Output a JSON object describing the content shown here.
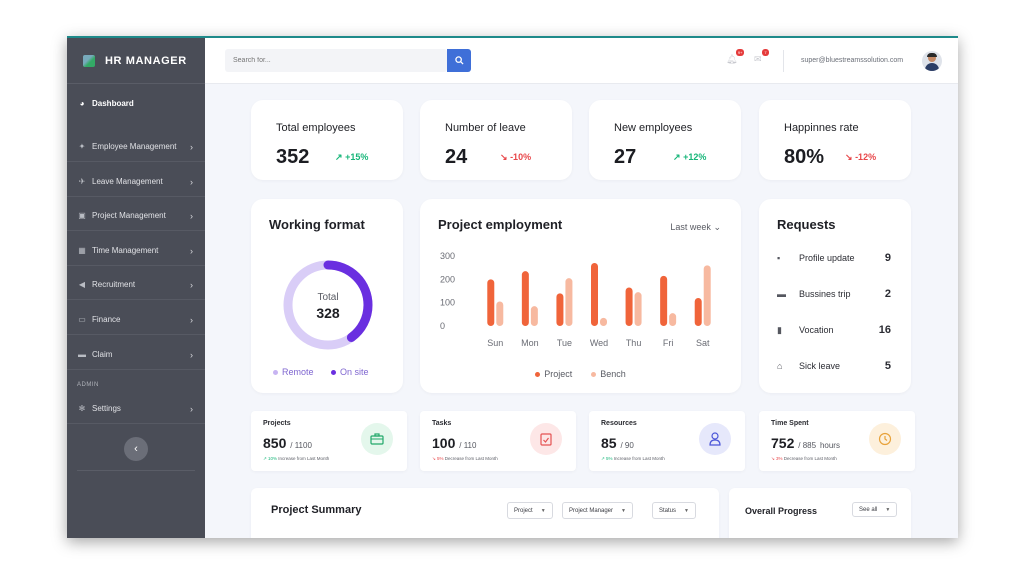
{
  "brand": {
    "title": "HR MANAGER"
  },
  "sidebar": {
    "items": [
      {
        "label": "Dashboard",
        "icon": "dashboard-icon"
      },
      {
        "label": "Employee Management",
        "icon": "users-icon"
      },
      {
        "label": "Leave Management",
        "icon": "plane-icon"
      },
      {
        "label": "Project Management",
        "icon": "briefcase-icon"
      },
      {
        "label": "Time Management",
        "icon": "calendar-icon"
      },
      {
        "label": "Recruitment",
        "icon": "megaphone-icon"
      },
      {
        "label": "Finance",
        "icon": "money-icon"
      },
      {
        "label": "Claim",
        "icon": "card-icon"
      }
    ],
    "admin_label": "ADMIN",
    "settings_label": "Settings"
  },
  "topbar": {
    "search_placeholder": "Search for...",
    "notif_count": "9+",
    "mail_count": "7",
    "email": "super@bluestreamssolution.com"
  },
  "stats": [
    {
      "label": "Total employees",
      "value": "352",
      "change": "+15%",
      "trend": "up"
    },
    {
      "label": "Number of leave",
      "value": "24",
      "change": "-10%",
      "trend": "down"
    },
    {
      "label": "New employees",
      "value": "27",
      "change": "+12%",
      "trend": "up"
    },
    {
      "label": "Happinnes rate",
      "value": "80%",
      "change": "-12%",
      "trend": "down"
    }
  ],
  "working_format": {
    "title": "Working format",
    "center_label": "Total",
    "center_value": "328",
    "legend": [
      "Remote",
      "On site"
    ],
    "onsite_fraction": 0.4,
    "colors": {
      "remote": "#d9cdf7",
      "onsite": "#6a2fe0"
    }
  },
  "project_employment": {
    "title": "Project employment",
    "period": "Last week"
  },
  "chart_data": {
    "type": "bar",
    "categories": [
      "Sun",
      "Mon",
      "Tue",
      "Wed",
      "Thu",
      "Fri",
      "Sat"
    ],
    "series": [
      {
        "name": "Project",
        "values": [
          200,
          235,
          140,
          270,
          165,
          215,
          120
        ],
        "color": "#f0643a"
      },
      {
        "name": "Bench",
        "values": [
          105,
          85,
          205,
          35,
          145,
          55,
          260
        ],
        "color": "#f7b9a0"
      }
    ],
    "yticks": [
      "300",
      "200",
      "100",
      "0"
    ],
    "ylim": [
      0,
      300
    ]
  },
  "requests": {
    "title": "Requests",
    "items": [
      {
        "label": "Profile update",
        "value": "9",
        "icon": "id-card-icon"
      },
      {
        "label": "Bussines trip",
        "value": "2",
        "icon": "suitcase-icon"
      },
      {
        "label": "Vocation",
        "value": "16",
        "icon": "luggage-icon"
      },
      {
        "label": "Sick leave",
        "value": "5",
        "icon": "home-icon"
      }
    ]
  },
  "mini_stats": [
    {
      "title": "Projects",
      "value": "850",
      "total": "/ 1100",
      "unit": "",
      "note": "↗ 10% Increase from Last Month",
      "trend": "up",
      "icon": "briefcase-icon",
      "bg": "#e4f7ec",
      "fg": "#21a86a"
    },
    {
      "title": "Tasks",
      "value": "100",
      "total": "/ 110",
      "unit": "",
      "note": "↘ 5% Decrease from Last Month",
      "trend": "down",
      "icon": "clipboard-check-icon",
      "bg": "#fde7e7",
      "fg": "#e55353"
    },
    {
      "title": "Resources",
      "value": "85",
      "total": "/ 90",
      "unit": "",
      "note": "↗ 5% Increase from Last Month",
      "trend": "up",
      "icon": "user-icon",
      "bg": "#e6e8fb",
      "fg": "#4b56d8"
    },
    {
      "title": "Time Spent",
      "value": "752",
      "total": "/ 885",
      "unit": "hours",
      "note": "↘ 3% Decrease from Last Month",
      "trend": "down",
      "icon": "clock-icon",
      "bg": "#fdf0dc",
      "fg": "#e8a23a"
    }
  ],
  "project_summary": {
    "title": "Project Summary",
    "filters": [
      "Project",
      "Project Manager",
      "Status"
    ]
  },
  "overall_progress": {
    "title": "Overall Progress",
    "see_all": "See all"
  }
}
